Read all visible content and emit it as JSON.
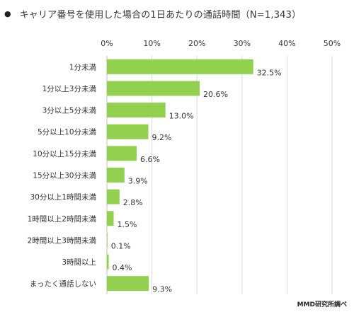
{
  "header": {
    "bullet": "●",
    "title": "キャリア番号を使用した場合の1日あたりの通話時間（N=1,343）"
  },
  "source": "MMD研究所調べ",
  "chart_data": {
    "type": "bar",
    "orientation": "horizontal",
    "title": "キャリア番号を使用した場合の1日あたりの通話時間（N=1,343）",
    "categories": [
      "1分未満",
      "1分以上3分未満",
      "3分以上5分未満",
      "5分以上10分未満",
      "10分以上15分未満",
      "15分以上30分未満",
      "30分以上1時間未満",
      "1時間以上2時間未満",
      "2時間以上3時間未満",
      "3時間以上",
      "まったく通話しない"
    ],
    "values": [
      32.5,
      20.6,
      13.0,
      9.2,
      6.6,
      3.9,
      2.8,
      1.5,
      0.1,
      0.4,
      9.3
    ],
    "value_labels": [
      "32.5%",
      "20.6%",
      "13.0%",
      "9.2%",
      "6.6%",
      "3.9%",
      "2.8%",
      "1.5%",
      "0.1%",
      "0.4%",
      "9.3%"
    ],
    "xlim": [
      0,
      50
    ],
    "x_ticks": [
      0,
      10,
      20,
      30,
      40,
      50
    ],
    "x_tick_labels": [
      "0%",
      "10%",
      "20%",
      "30%",
      "40%",
      "50%"
    ],
    "axis_position": "top",
    "grid": true,
    "bar_color": "#92d050",
    "grid_color": "#d9d9d9"
  }
}
